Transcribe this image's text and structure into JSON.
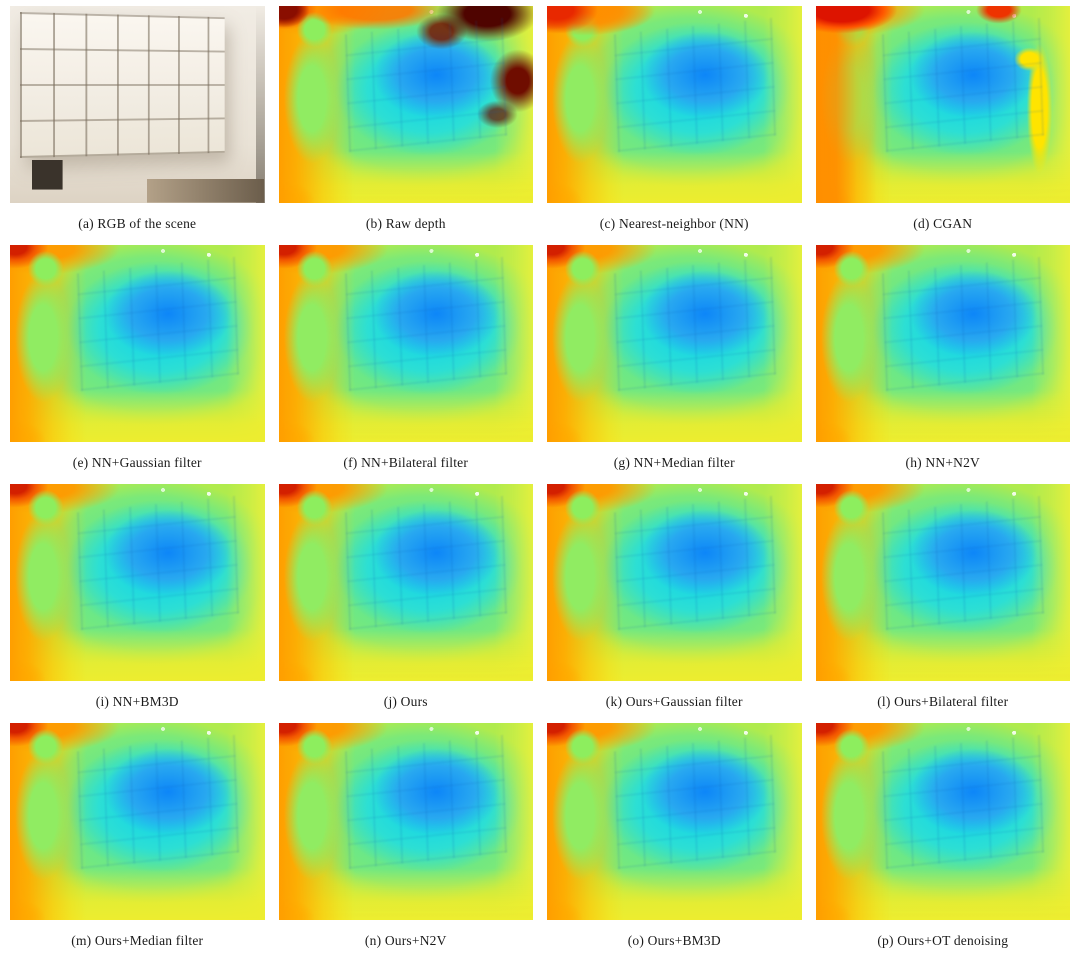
{
  "figure": {
    "description": "Qualitative comparison of depth denoising and completion methods on an indoor shelving scene",
    "colormap": "jet",
    "colormap_colors": {
      "dark_red": "#4f0400",
      "red": "#d32000",
      "orange": "#ff9e00",
      "yellow": "#eded2f",
      "green": "#7ae97a",
      "cyan": "#0bd0f2",
      "blue": "#0d86f8"
    },
    "panels": [
      {
        "id": "a",
        "caption": "(a) RGB of the scene",
        "type": "rgb-photo"
      },
      {
        "id": "b",
        "caption": "(b) Raw depth",
        "type": "depth-map"
      },
      {
        "id": "c",
        "caption": "(c) Nearest-neighbor (NN)",
        "type": "depth-map"
      },
      {
        "id": "d",
        "caption": "(d) CGAN",
        "type": "depth-map"
      },
      {
        "id": "e",
        "caption": "(e) NN+Gaussian filter",
        "type": "depth-map"
      },
      {
        "id": "f",
        "caption": "(f) NN+Bilateral filter",
        "type": "depth-map"
      },
      {
        "id": "g",
        "caption": "(g) NN+Median filter",
        "type": "depth-map"
      },
      {
        "id": "h",
        "caption": "(h) NN+N2V",
        "type": "depth-map"
      },
      {
        "id": "i",
        "caption": "(i) NN+BM3D",
        "type": "depth-map"
      },
      {
        "id": "j",
        "caption": "(j) Ours",
        "type": "depth-map"
      },
      {
        "id": "k",
        "caption": "(k) Ours+Gaussian filter",
        "type": "depth-map"
      },
      {
        "id": "l",
        "caption": "(l) Ours+Bilateral filter",
        "type": "depth-map"
      },
      {
        "id": "m",
        "caption": "(m) Ours+Median filter",
        "type": "depth-map"
      },
      {
        "id": "n",
        "caption": "(n) Ours+N2V",
        "type": "depth-map"
      },
      {
        "id": "o",
        "caption": "(o) Ours+BM3D",
        "type": "depth-map"
      },
      {
        "id": "p",
        "caption": "(p) Ours+OT denoising",
        "type": "depth-map"
      }
    ]
  }
}
